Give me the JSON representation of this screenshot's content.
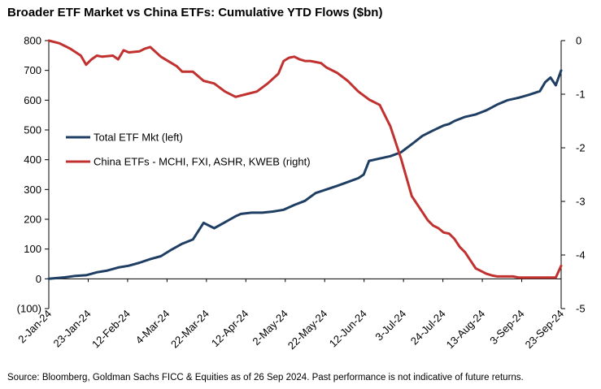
{
  "chart_data": {
    "type": "line",
    "title": "Broader ETF Market vs China ETFs: Cumulative YTD Flows ($bn)",
    "source": "Source: Bloomberg, Goldman Sachs FICC & Equities as of 26 Sep 2024. Past performance is not indicative of future returns.",
    "x_tick_labels": [
      "2-Jan-24",
      "23-Jan-24",
      "12-Feb-24",
      "4-Mar-24",
      "22-Mar-24",
      "12-Apr-24",
      "2-May-24",
      "22-May-24",
      "12-Jun-24",
      "3-Jul-24",
      "24-Jul-24",
      "13-Aug-24",
      "3-Sep-24",
      "23-Sep-24"
    ],
    "x_index_range": [
      0,
      192
    ],
    "y_left": {
      "ticks": [
        800,
        700,
        600,
        500,
        400,
        300,
        200,
        100,
        0,
        -100
      ],
      "tick_labels": [
        "800",
        "700",
        "600",
        "500",
        "400",
        "300",
        "200",
        "100",
        "0",
        "(100)"
      ],
      "range": [
        -100,
        800
      ]
    },
    "y_right": {
      "ticks": [
        0,
        -1,
        -2,
        -3,
        -4,
        -5
      ],
      "tick_labels": [
        "0",
        "-1",
        "-2",
        "-3",
        "-4",
        "-5"
      ],
      "range": [
        -5,
        0
      ]
    },
    "series": [
      {
        "name": "Total ETF Mkt (left)",
        "axis": "left",
        "color": "#1f3e63",
        "x": [
          0,
          6,
          10,
          14,
          18,
          22,
          26,
          30,
          34,
          38,
          42,
          46,
          50,
          54,
          58,
          62,
          66,
          68,
          70,
          72,
          76,
          80,
          84,
          88,
          92,
          96,
          100,
          104,
          108,
          112,
          116,
          118,
          120,
          124,
          128,
          132,
          136,
          140,
          144,
          148,
          150,
          152,
          156,
          160,
          164,
          168,
          172,
          176,
          180,
          184,
          186,
          188,
          190,
          192
        ],
        "values": [
          0,
          5,
          10,
          12,
          22,
          28,
          38,
          44,
          54,
          66,
          76,
          98,
          118,
          132,
          188,
          170,
          190,
          200,
          210,
          218,
          222,
          222,
          226,
          232,
          248,
          262,
          288,
          300,
          312,
          325,
          338,
          350,
          396,
          404,
          412,
          425,
          452,
          480,
          498,
          515,
          520,
          530,
          544,
          552,
          566,
          585,
          600,
          608,
          618,
          630,
          660,
          676,
          650,
          700
        ]
      },
      {
        "name": "China ETFs - MCHI, FXI, ASHR, KWEB (right)",
        "axis": "right",
        "color": "#c0312f",
        "x": [
          0,
          4,
          8,
          12,
          14,
          16,
          18,
          20,
          24,
          26,
          28,
          30,
          34,
          36,
          38,
          42,
          46,
          48,
          50,
          54,
          58,
          62,
          66,
          70,
          74,
          78,
          82,
          86,
          88,
          90,
          92,
          94,
          96,
          98,
          100,
          102,
          104,
          108,
          112,
          116,
          120,
          124,
          128,
          132,
          136,
          140,
          142,
          144,
          146,
          148,
          150,
          152,
          154,
          156,
          158,
          160,
          162,
          164,
          166,
          168,
          170,
          172,
          174,
          176,
          178,
          180,
          182,
          184,
          186,
          188,
          190,
          192
        ],
        "values": [
          0,
          -0.05,
          -0.15,
          -0.28,
          -0.45,
          -0.35,
          -0.28,
          -0.3,
          -0.28,
          -0.35,
          -0.18,
          -0.22,
          -0.2,
          -0.15,
          -0.12,
          -0.3,
          -0.42,
          -0.48,
          -0.58,
          -0.58,
          -0.75,
          -0.8,
          -0.95,
          -1.05,
          -1.0,
          -0.95,
          -0.8,
          -0.62,
          -0.38,
          -0.32,
          -0.3,
          -0.35,
          -0.38,
          -0.38,
          -0.4,
          -0.42,
          -0.5,
          -0.6,
          -0.75,
          -0.95,
          -1.1,
          -1.2,
          -1.6,
          -2.2,
          -2.9,
          -3.2,
          -3.35,
          -3.45,
          -3.5,
          -3.58,
          -3.6,
          -3.7,
          -3.85,
          -3.95,
          -4.1,
          -4.25,
          -4.3,
          -4.35,
          -4.38,
          -4.4,
          -4.4,
          -4.4,
          -4.4,
          -4.42,
          -4.42,
          -4.42,
          -4.42,
          -4.42,
          -4.42,
          -4.42,
          -4.42,
          -4.2
        ]
      }
    ]
  }
}
